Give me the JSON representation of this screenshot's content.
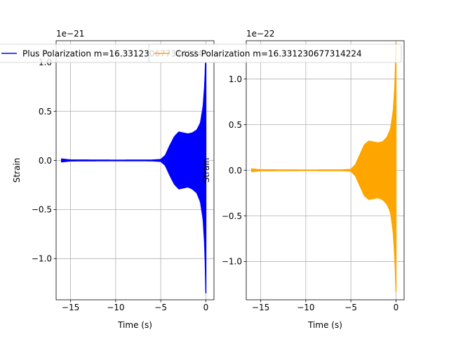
{
  "chart_data": [
    {
      "type": "line",
      "title": "",
      "xlabel": "Time (s)",
      "ylabel": "Strain",
      "offset_label": "1e−21",
      "xlim": [
        -16.6,
        0.9
      ],
      "ylim": [
        -1.42,
        1.22
      ],
      "xticks": [
        -15,
        -10,
        -5,
        0
      ],
      "xtick_labels": [
        "−15",
        "−10",
        "−5",
        "0"
      ],
      "yticks": [
        -1.0,
        -0.5,
        0.0,
        0.5,
        1.0
      ],
      "ytick_labels": [
        "−1.0",
        "−0.5",
        "0.0",
        "0.5",
        "1.0"
      ],
      "grid": true,
      "legend_position": "top-center",
      "series": [
        {
          "name": "Plus Polarization m=16.331230677314224",
          "color": "#0000ff",
          "envelope": {
            "t": [
              -16.0,
              -15.0,
              -10.0,
              -6.0,
              -5.0,
              -4.5,
              -4.0,
              -3.5,
              -3.0,
              -2.5,
              -2.0,
              -1.5,
              -1.0,
              -0.6,
              -0.3,
              -0.1,
              0.0
            ],
            "upper": [
              0.015,
              0.005,
              0.003,
              0.004,
              0.01,
              0.05,
              0.15,
              0.24,
              0.29,
              0.28,
              0.27,
              0.28,
              0.31,
              0.38,
              0.55,
              0.8,
              1.12
            ],
            "lower": [
              -0.015,
              -0.005,
              -0.003,
              -0.004,
              -0.01,
              -0.05,
              -0.15,
              -0.24,
              -0.29,
              -0.28,
              -0.27,
              -0.29,
              -0.33,
              -0.42,
              -0.6,
              -0.9,
              -1.35
            ]
          }
        }
      ]
    },
    {
      "type": "line",
      "title": "",
      "xlabel": "Time (s)",
      "ylabel": "Strain",
      "offset_label": "1e−22",
      "xlim": [
        -16.6,
        0.9
      ],
      "ylim": [
        -1.42,
        1.42
      ],
      "xticks": [
        -15,
        -10,
        -5,
        0
      ],
      "xtick_labels": [
        "−15",
        "−10",
        "−5",
        "0"
      ],
      "yticks": [
        -1.0,
        -0.5,
        0.0,
        0.5,
        1.0
      ],
      "ytick_labels": [
        "−1.0",
        "−0.5",
        "0.0",
        "0.5",
        "1.0"
      ],
      "grid": true,
      "legend_position": "top-center",
      "series": [
        {
          "name": "Cross Polarization m=16.331230677314224",
          "color": "#ffa500",
          "envelope": {
            "t": [
              -16.0,
              -15.0,
              -10.0,
              -6.0,
              -5.0,
              -4.5,
              -4.0,
              -3.5,
              -3.0,
              -2.5,
              -2.0,
              -1.5,
              -1.0,
              -0.6,
              -0.3,
              -0.1,
              0.0
            ],
            "upper": [
              0.015,
              0.005,
              0.003,
              0.004,
              0.01,
              0.06,
              0.17,
              0.28,
              0.32,
              0.31,
              0.3,
              0.31,
              0.36,
              0.45,
              0.65,
              0.95,
              1.4
            ],
            "lower": [
              -0.015,
              -0.005,
              -0.003,
              -0.004,
              -0.01,
              -0.06,
              -0.17,
              -0.28,
              -0.32,
              -0.31,
              -0.3,
              -0.32,
              -0.37,
              -0.46,
              -0.68,
              -1.0,
              -1.33
            ]
          }
        }
      ]
    }
  ]
}
